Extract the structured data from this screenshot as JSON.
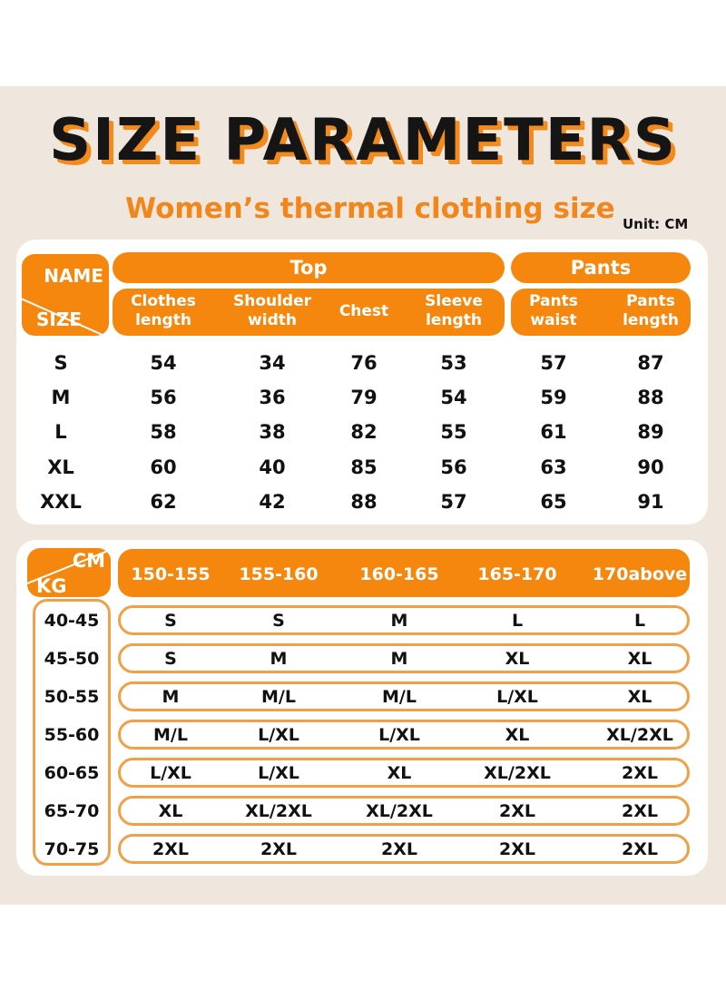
{
  "header": {
    "title": "SIZE PARAMETERS",
    "subtitle": "Women’s thermal clothing size",
    "unit": "Unit: CM"
  },
  "table1": {
    "corner_top": "NAME",
    "corner_bottom": "SIZE",
    "group_top": "Top",
    "group_pants": "Pants",
    "columns": [
      [
        "Clothes",
        "length"
      ],
      [
        "Shoulder",
        "width"
      ],
      [
        "Chest",
        ""
      ],
      [
        "Sleeve",
        "length"
      ],
      [
        "Pants",
        "waist"
      ],
      [
        "Pants",
        "length"
      ]
    ],
    "rows": [
      {
        "size": "S",
        "values": [
          "54",
          "34",
          "76",
          "53",
          "57",
          "87"
        ]
      },
      {
        "size": "M",
        "values": [
          "56",
          "36",
          "79",
          "54",
          "59",
          "88"
        ]
      },
      {
        "size": "L",
        "values": [
          "58",
          "38",
          "82",
          "55",
          "61",
          "89"
        ]
      },
      {
        "size": "XL",
        "values": [
          "60",
          "40",
          "85",
          "56",
          "63",
          "90"
        ]
      },
      {
        "size": "XXL",
        "values": [
          "62",
          "42",
          "88",
          "57",
          "65",
          "91"
        ]
      }
    ]
  },
  "table2": {
    "corner_top": "CM",
    "corner_bottom": "KG",
    "heights": [
      "150-155",
      "155-160",
      "160-165",
      "165-170",
      "170above"
    ],
    "rows": [
      {
        "kg": "40-45",
        "sizes": [
          "S",
          "S",
          "M",
          "L",
          "L"
        ]
      },
      {
        "kg": "45-50",
        "sizes": [
          "S",
          "M",
          "M",
          "XL",
          "XL"
        ]
      },
      {
        "kg": "50-55",
        "sizes": [
          "M",
          "M/L",
          "M/L",
          "L/XL",
          "XL"
        ]
      },
      {
        "kg": "55-60",
        "sizes": [
          "M/L",
          "L/XL",
          "L/XL",
          "XL",
          "XL/2XL"
        ]
      },
      {
        "kg": "60-65",
        "sizes": [
          "L/XL",
          "L/XL",
          "XL",
          "XL/2XL",
          "2XL"
        ]
      },
      {
        "kg": "65-70",
        "sizes": [
          "XL",
          "XL/2XL",
          "XL/2XL",
          "2XL",
          "2XL"
        ]
      },
      {
        "kg": "70-75",
        "sizes": [
          "2XL",
          "2XL",
          "2XL",
          "2XL",
          "2XL"
        ]
      }
    ]
  },
  "colors": {
    "accent": "#f5870f",
    "outline": "#f2a047",
    "background": "#efe7dd"
  }
}
